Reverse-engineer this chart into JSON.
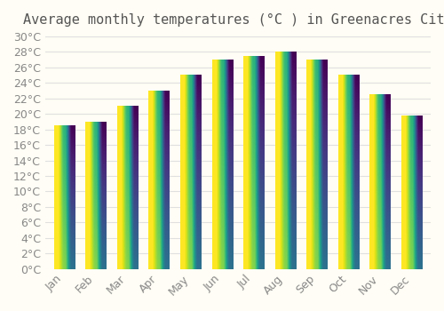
{
  "title": "Average monthly temperatures (°C ) in Greenacres City",
  "months": [
    "Jan",
    "Feb",
    "Mar",
    "Apr",
    "May",
    "Jun",
    "Jul",
    "Aug",
    "Sep",
    "Oct",
    "Nov",
    "Dec"
  ],
  "values": [
    18.5,
    19.0,
    21.0,
    23.0,
    25.0,
    27.0,
    27.5,
    28.0,
    27.0,
    25.0,
    22.5,
    19.8
  ],
  "bar_color_top": "#FFA500",
  "bar_color_bottom": "#FFD060",
  "ylim": [
    0,
    30
  ],
  "ytick_step": 2,
  "background_color": "#FFFDF5",
  "grid_color": "#E0E0E0",
  "title_fontsize": 11,
  "tick_fontsize": 9,
  "font_color": "#888888"
}
